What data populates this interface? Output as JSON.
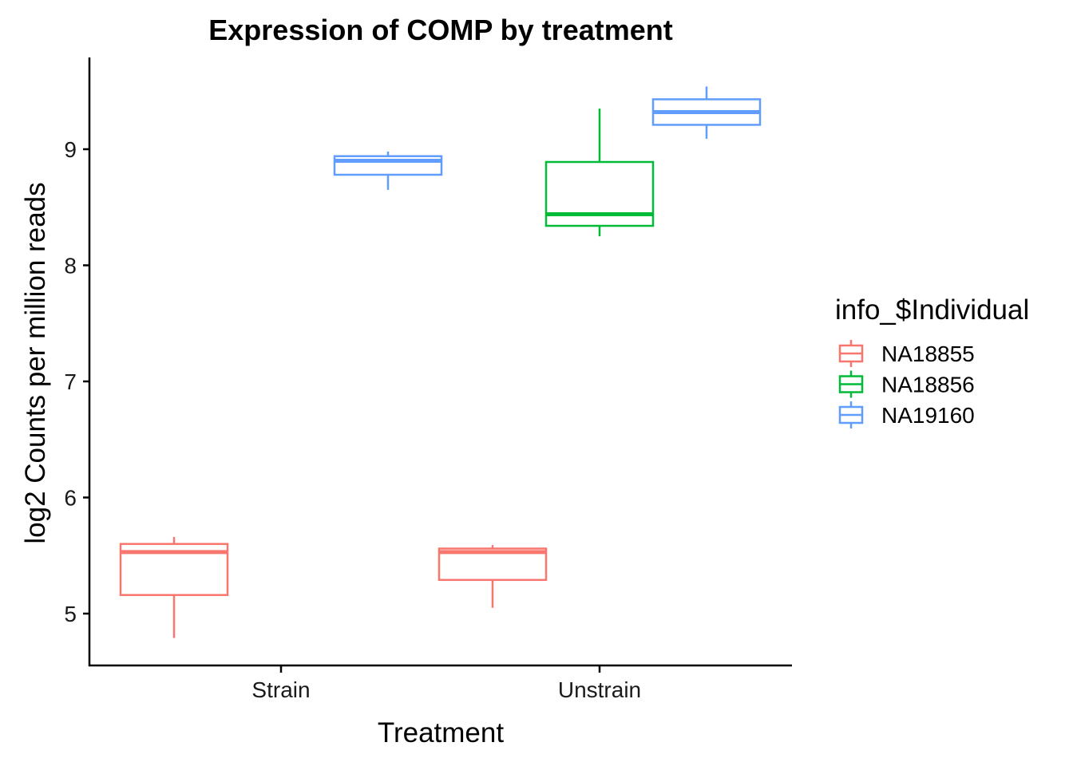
{
  "chart_data": {
    "type": "boxplot",
    "title": "Expression of COMP by treatment",
    "xlabel": "Treatment",
    "ylabel": "log2 Counts per million reads",
    "categories": [
      "Strain",
      "Unstrain"
    ],
    "yticks": [
      5,
      6,
      7,
      8,
      9
    ],
    "ylim": [
      4.55,
      9.8
    ],
    "grid": false,
    "legend": {
      "title": "info_$Individual",
      "position": "right"
    },
    "series": [
      {
        "name": "NA18855",
        "color": "#F8766D",
        "boxes": [
          {
            "category": "Strain",
            "min": 4.79,
            "q1": 5.16,
            "median": 5.53,
            "q3": 5.6,
            "max": 5.66
          },
          {
            "category": "Unstrain",
            "min": 5.05,
            "q1": 5.29,
            "median": 5.53,
            "q3": 5.56,
            "max": 5.59
          }
        ]
      },
      {
        "name": "NA18856",
        "color": "#00BA38",
        "boxes": [
          {
            "category": "Unstrain",
            "min": 8.25,
            "q1": 8.34,
            "median": 8.44,
            "q3": 8.89,
            "max": 9.35
          }
        ]
      },
      {
        "name": "NA19160",
        "color": "#619CFF",
        "boxes": [
          {
            "category": "Strain",
            "min": 8.65,
            "q1": 8.78,
            "median": 8.9,
            "q3": 8.94,
            "max": 8.98
          },
          {
            "category": "Unstrain",
            "min": 9.09,
            "q1": 9.21,
            "median": 9.32,
            "q3": 9.43,
            "max": 9.54
          }
        ]
      }
    ]
  }
}
